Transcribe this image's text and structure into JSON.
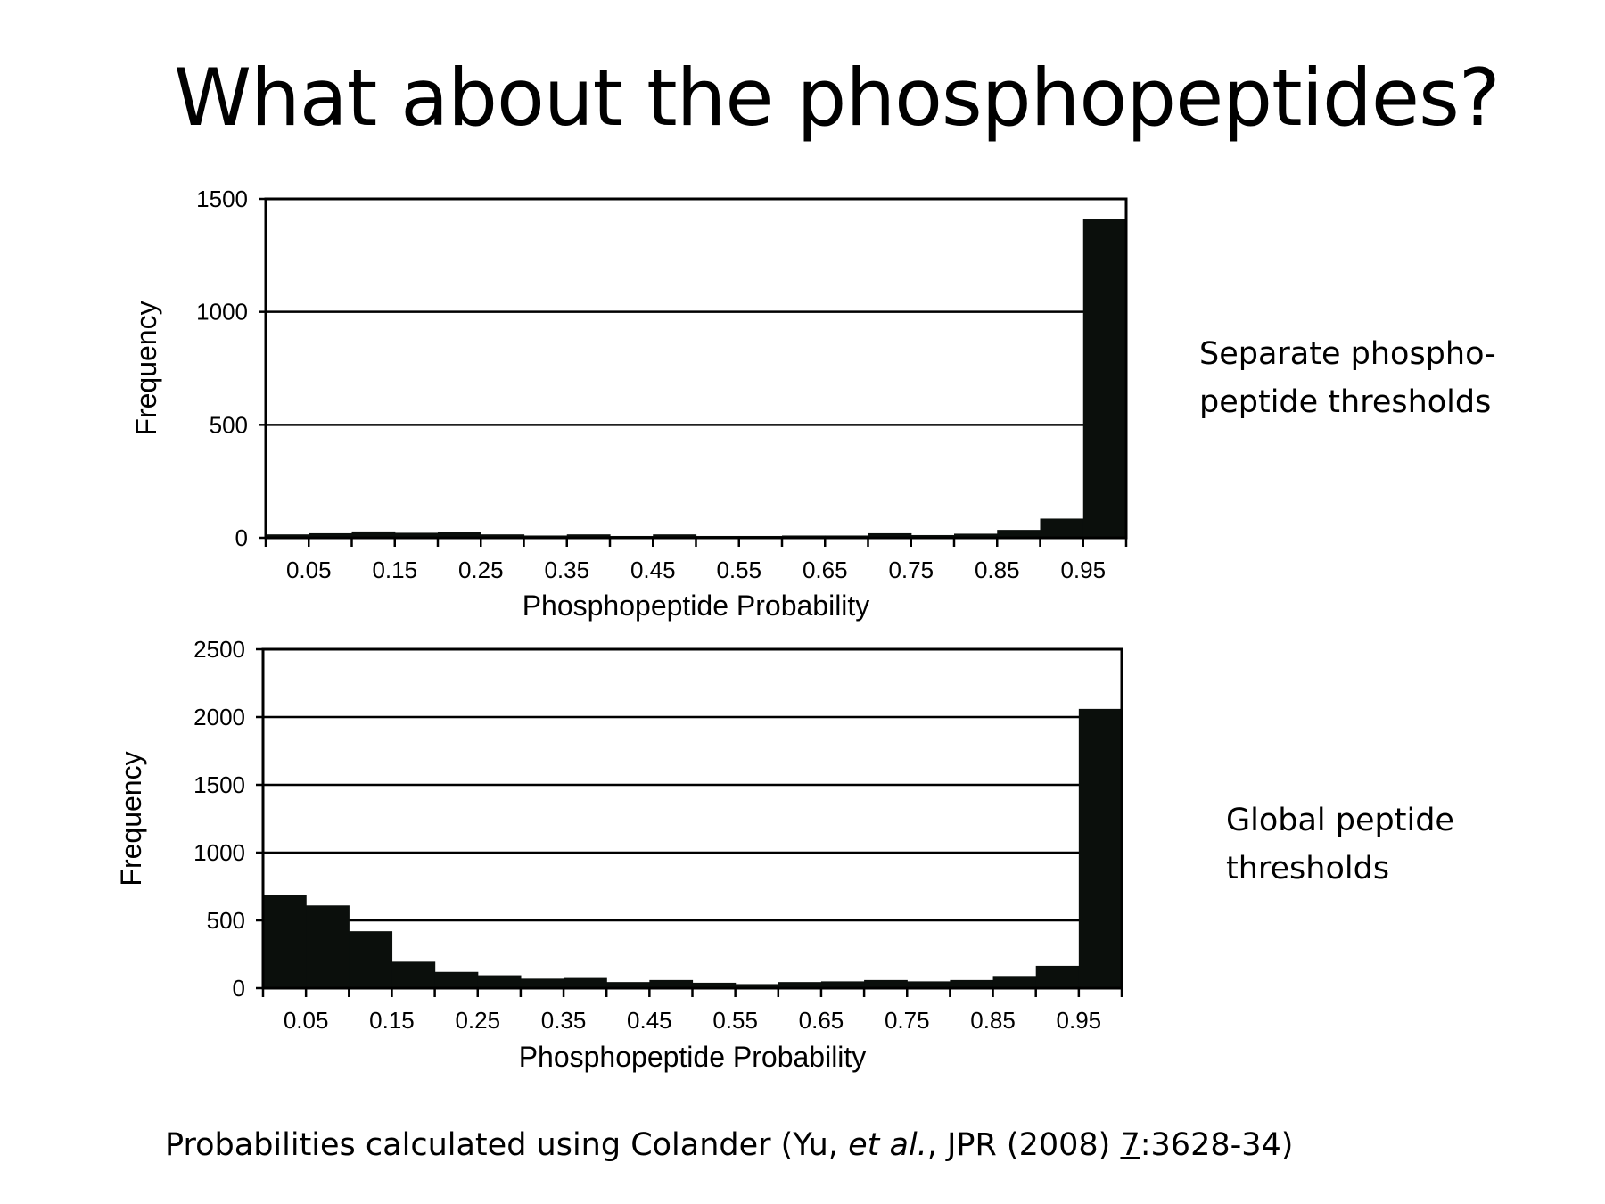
{
  "slide": {
    "title": "What about the phosphopeptides?",
    "note_top_line1": "Separate phospho-",
    "note_top_line2": "peptide thresholds",
    "note_bottom_line1": "Global peptide",
    "note_bottom_line2": "thresholds",
    "footnote_part1": "Probabilities calculated using Colander (Yu, ",
    "footnote_italic": "et al.",
    "footnote_part2": ", JPR (2008) ",
    "footnote_underlined": "7",
    "footnote_part3": ":3628-34)"
  },
  "chart_data": [
    {
      "type": "bar",
      "xlabel": "Phosphopeptide Probability",
      "ylabel": "Frequency",
      "ylim": [
        0,
        1500
      ],
      "yticks": [
        0,
        500,
        1000,
        1500
      ],
      "xtick_labels": [
        "0.05",
        "0.15",
        "0.25",
        "0.35",
        "0.45",
        "0.55",
        "0.65",
        "0.75",
        "0.85",
        "0.95"
      ],
      "bin_width": 0.05,
      "bin_starts": [
        0,
        0.05,
        0.1,
        0.15,
        0.2,
        0.25,
        0.3,
        0.35,
        0.4,
        0.45,
        0.5,
        0.55,
        0.6,
        0.65,
        0.7,
        0.75,
        0.8,
        0.85,
        0.9,
        0.95
      ],
      "values": [
        15,
        20,
        28,
        22,
        25,
        15,
        10,
        15,
        8,
        15,
        8,
        8,
        10,
        10,
        20,
        12,
        18,
        35,
        85,
        1410
      ],
      "grid": "horizontal",
      "color": "#0b0f0c"
    },
    {
      "type": "bar",
      "xlabel": "Phosphopeptide Probability",
      "ylabel": "Frequency",
      "ylim": [
        0,
        2500
      ],
      "yticks": [
        0,
        500,
        1000,
        1500,
        2000,
        2500
      ],
      "xtick_labels": [
        "0.05",
        "0.15",
        "0.25",
        "0.35",
        "0.45",
        "0.55",
        "0.65",
        "0.75",
        "0.85",
        "0.95"
      ],
      "bin_width": 0.05,
      "bin_starts": [
        0,
        0.05,
        0.1,
        0.15,
        0.2,
        0.25,
        0.3,
        0.35,
        0.4,
        0.45,
        0.5,
        0.55,
        0.6,
        0.65,
        0.7,
        0.75,
        0.8,
        0.85,
        0.9,
        0.95
      ],
      "values": [
        690,
        610,
        420,
        195,
        120,
        95,
        70,
        75,
        45,
        60,
        40,
        30,
        45,
        50,
        60,
        50,
        60,
        90,
        165,
        2060
      ],
      "grid": "horizontal",
      "color": "#0b0f0c"
    }
  ]
}
